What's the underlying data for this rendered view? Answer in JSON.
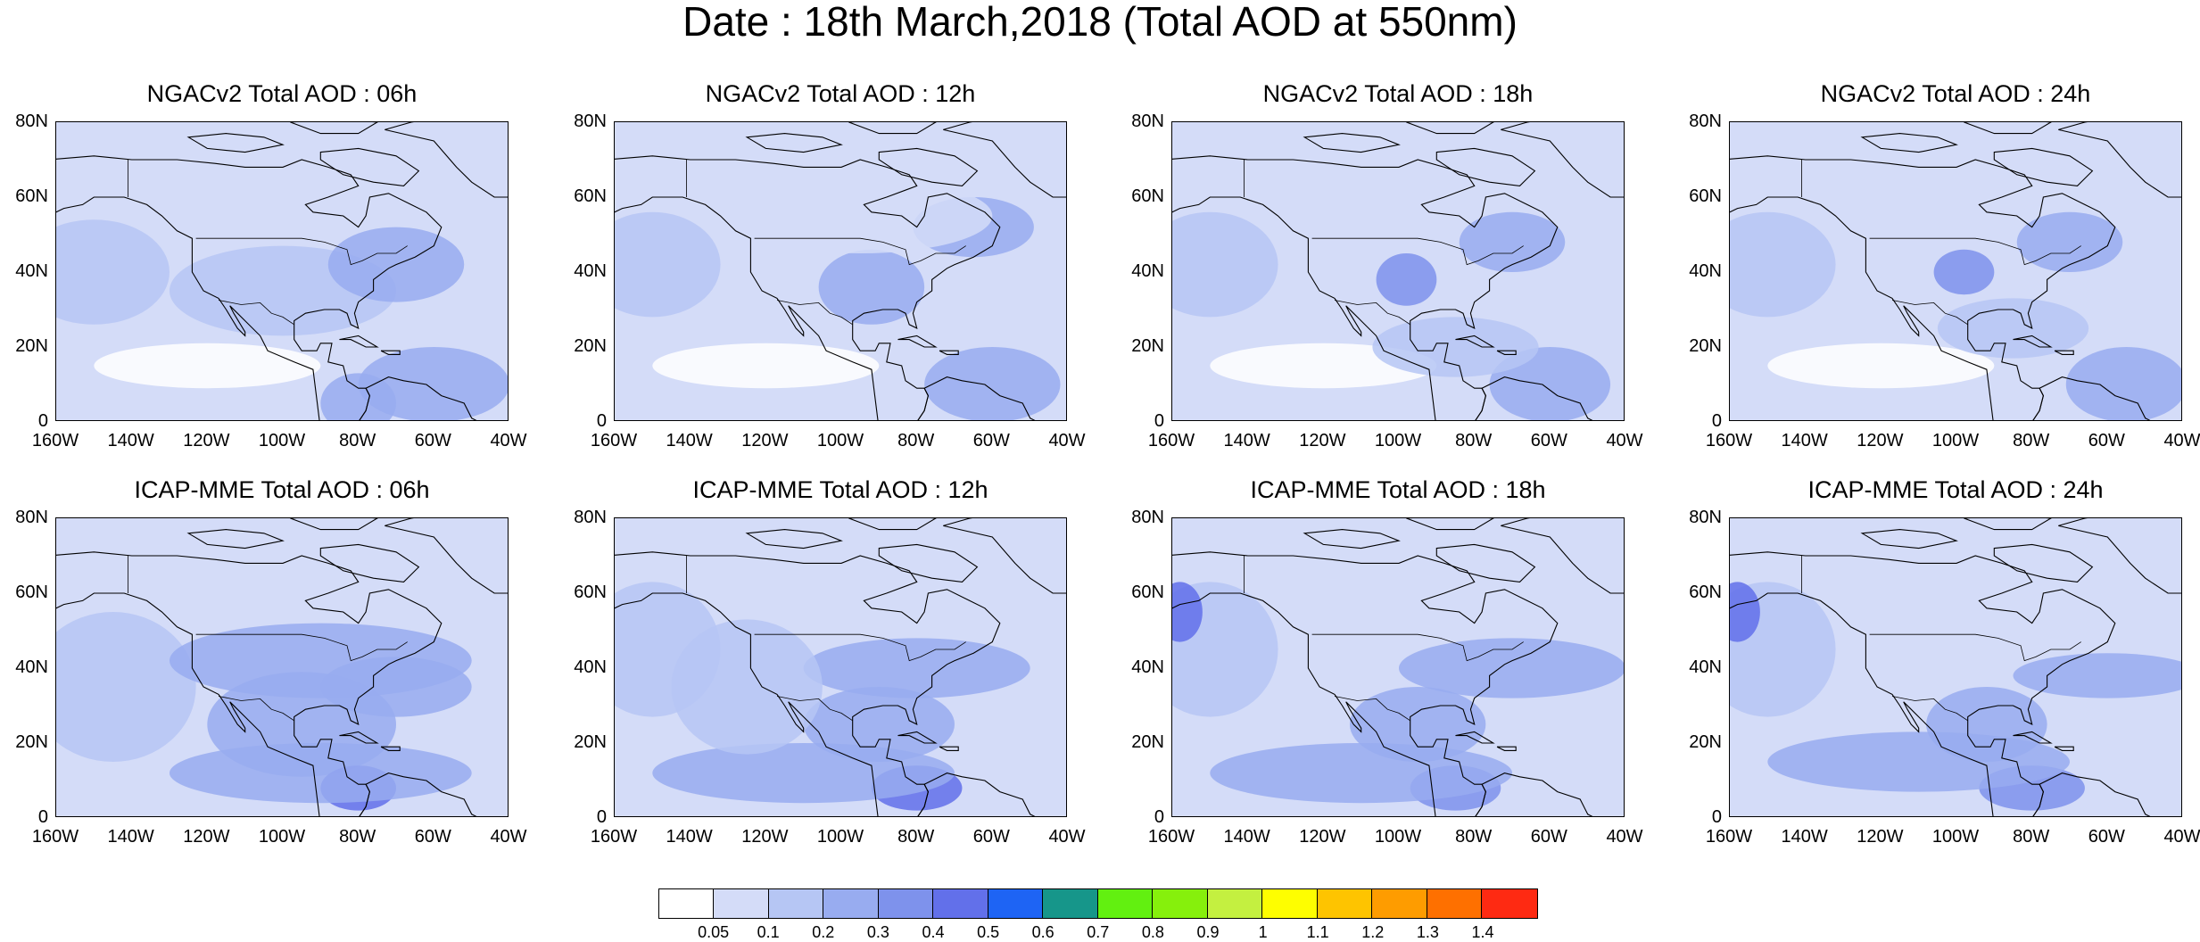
{
  "figure": {
    "title": "Date : 18th March,2018 (Total AOD at 550nm)"
  },
  "map_data": {
    "type": "gridded-map",
    "lon_range": [
      -160,
      -40
    ],
    "lat_range": [
      0,
      80
    ],
    "lon_ticks": [
      "160W",
      "140W",
      "120W",
      "100W",
      "80W",
      "60W",
      "40W"
    ],
    "lat_ticks": [
      "80N",
      "60N",
      "40N",
      "20N",
      "0"
    ],
    "panels": [
      {
        "title": "NGACv2 Total AOD : 06h",
        "model": "NGACv2",
        "hour": "06h"
      },
      {
        "title": "NGACv2 Total AOD : 12h",
        "model": "NGACv2",
        "hour": "12h"
      },
      {
        "title": "NGACv2 Total AOD : 18h",
        "model": "NGACv2",
        "hour": "18h"
      },
      {
        "title": "NGACv2 Total AOD : 24h",
        "model": "NGACv2",
        "hour": "24h"
      },
      {
        "title": "ICAP-MME Total AOD : 06h",
        "model": "ICAP-MME",
        "hour": "06h"
      },
      {
        "title": "ICAP-MME Total AOD : 12h",
        "model": "ICAP-MME",
        "hour": "12h"
      },
      {
        "title": "ICAP-MME Total AOD : 18h",
        "model": "ICAP-MME",
        "hour": "18h"
      },
      {
        "title": "ICAP-MME Total AOD : 24h",
        "model": "ICAP-MME",
        "hour": "24h"
      }
    ]
  },
  "colorbar": {
    "labels": [
      "0.05",
      "0.1",
      "0.2",
      "0.3",
      "0.4",
      "0.5",
      "0.6",
      "0.7",
      "0.8",
      "0.9",
      "1",
      "1.1",
      "1.2",
      "1.3",
      "1.4"
    ],
    "colors": [
      "#ffffff",
      "#d4dcf8",
      "#b6c6f4",
      "#98acf0",
      "#7e92ec",
      "#6270ea",
      "#1e64f4",
      "#16968a",
      "#62f010",
      "#86f00c",
      "#c4f040",
      "#fefe00",
      "#fec400",
      "#fe9c00",
      "#fe7000",
      "#fe2a12"
    ]
  }
}
